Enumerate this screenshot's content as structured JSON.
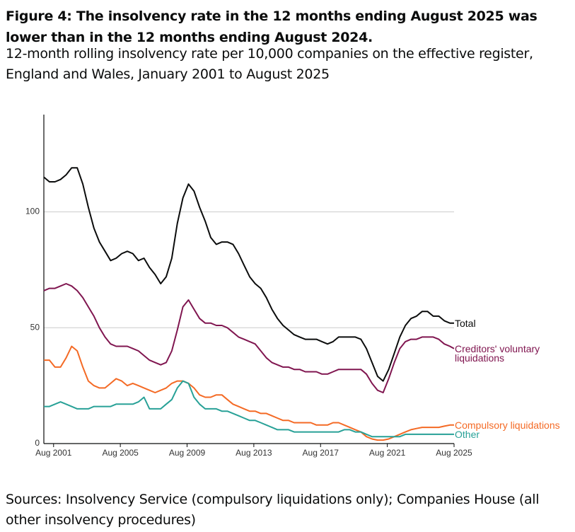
{
  "chart_data": {
    "type": "line",
    "title": "Figure 4: The insolvency rate in the 12 months ending August 2025 was lower than in the 12 months ending August 2024.",
    "subtitle": "12-month rolling insolvency rate per 10,000 companies on the effective register, England and Wales, January 2001 to August 2025",
    "source": "Sources: Insolvency Service (compulsory liquidations only); Companies House (all other insolvency procedures)",
    "x": [
      "2001-01",
      "2001-05",
      "2001-09",
      "2002-01",
      "2002-05",
      "2002-09",
      "2003-01",
      "2003-05",
      "2003-09",
      "2004-01",
      "2004-05",
      "2004-09",
      "2005-01",
      "2005-05",
      "2005-09",
      "2006-01",
      "2006-05",
      "2006-09",
      "2007-01",
      "2007-05",
      "2007-09",
      "2008-01",
      "2008-05",
      "2008-09",
      "2009-01",
      "2009-05",
      "2009-09",
      "2010-01",
      "2010-05",
      "2010-09",
      "2011-01",
      "2011-05",
      "2011-09",
      "2012-01",
      "2012-05",
      "2012-09",
      "2013-01",
      "2013-05",
      "2013-09",
      "2014-01",
      "2014-05",
      "2014-09",
      "2015-01",
      "2015-05",
      "2015-09",
      "2016-01",
      "2016-05",
      "2016-09",
      "2017-01",
      "2017-05",
      "2017-09",
      "2018-01",
      "2018-05",
      "2018-09",
      "2019-01",
      "2019-05",
      "2019-09",
      "2020-01",
      "2020-05",
      "2020-09",
      "2021-01",
      "2021-05",
      "2021-09",
      "2022-01",
      "2022-05",
      "2022-09",
      "2023-01",
      "2023-05",
      "2023-09",
      "2024-01",
      "2024-05",
      "2024-09",
      "2025-01",
      "2025-05",
      "2025-08"
    ],
    "xlim": [
      "2001-01",
      "2025-08"
    ],
    "xticks": [
      {
        "value": "2001-08",
        "label": "Aug 2001"
      },
      {
        "value": "2005-08",
        "label": "Aug 2005"
      },
      {
        "value": "2009-08",
        "label": "Aug 2009"
      },
      {
        "value": "2013-08",
        "label": "Aug 2013"
      },
      {
        "value": "2017-08",
        "label": "Aug 2017"
      },
      {
        "value": "2021-08",
        "label": "Aug 2021"
      },
      {
        "value": "2025-08",
        "label": "Aug 2025"
      }
    ],
    "ylim": [
      0,
      142
    ],
    "yticks": [
      0,
      50,
      100
    ],
    "grid": true,
    "series": [
      {
        "name": "Total",
        "color": "#0b0c0c",
        "values": [
          115,
          113,
          113,
          114,
          116,
          119,
          119,
          112,
          102,
          93,
          87,
          83,
          79,
          80,
          82,
          83,
          82,
          79,
          80,
          76,
          73,
          69,
          72,
          80,
          95,
          106,
          112,
          109,
          102,
          96,
          89,
          86,
          87,
          87,
          86,
          82,
          77,
          72,
          69,
          67,
          63,
          58,
          54,
          51,
          49,
          47,
          46,
          45,
          45,
          45,
          44,
          43,
          44,
          46,
          46,
          46,
          46,
          45,
          41,
          35,
          29,
          27,
          32,
          39,
          46,
          51,
          54,
          55,
          57,
          57,
          55,
          55,
          53,
          52,
          52
        ]
      },
      {
        "name": "Creditors' voluntary liquidations",
        "color": "#801650",
        "values": [
          66,
          67,
          67,
          68,
          69,
          68,
          66,
          63,
          59,
          55,
          50,
          46,
          43,
          42,
          42,
          42,
          41,
          40,
          38,
          36,
          35,
          34,
          35,
          40,
          49,
          59,
          62,
          58,
          54,
          52,
          52,
          51,
          51,
          50,
          48,
          46,
          45,
          44,
          43,
          40,
          37,
          35,
          34,
          33,
          33,
          32,
          32,
          31,
          31,
          31,
          30,
          30,
          31,
          32,
          32,
          32,
          32,
          32,
          30,
          26,
          23,
          22,
          28,
          35,
          41,
          44,
          45,
          45,
          46,
          46,
          46,
          45,
          43,
          42,
          41
        ]
      },
      {
        "name": "Compulsory liquidations",
        "color": "#f46a25",
        "values": [
          36,
          36,
          33,
          33,
          37,
          42,
          40,
          33,
          27,
          25,
          24,
          24,
          26,
          28,
          27,
          25,
          26,
          25,
          24,
          23,
          22,
          23,
          24,
          26,
          27,
          27,
          26,
          24,
          21,
          20,
          20,
          21,
          21,
          19,
          17,
          16,
          15,
          14,
          14,
          13,
          13,
          12,
          11,
          10,
          10,
          9,
          9,
          9,
          9,
          8,
          8,
          8,
          9,
          9,
          8,
          7,
          6,
          5,
          3,
          2,
          1.5,
          1.5,
          2,
          3,
          4,
          5,
          6,
          6.5,
          7,
          7,
          7,
          7,
          7.5,
          8,
          8
        ]
      },
      {
        "name": "Other",
        "color": "#28a197",
        "values": [
          16,
          16,
          17,
          18,
          17,
          16,
          15,
          15,
          15,
          16,
          16,
          16,
          16,
          17,
          17,
          17,
          17,
          18,
          20,
          15,
          15,
          15,
          17,
          19,
          24,
          27,
          26,
          20,
          17,
          15,
          15,
          15,
          14,
          14,
          13,
          12,
          11,
          10,
          10,
          9,
          8,
          7,
          6,
          6,
          6,
          5,
          5,
          5,
          5,
          5,
          5,
          5,
          5,
          5,
          6,
          6,
          5,
          5,
          4,
          3,
          3,
          3,
          3,
          3,
          3,
          4,
          4,
          4,
          4,
          4,
          4,
          4,
          4,
          4,
          4
        ]
      }
    ]
  }
}
